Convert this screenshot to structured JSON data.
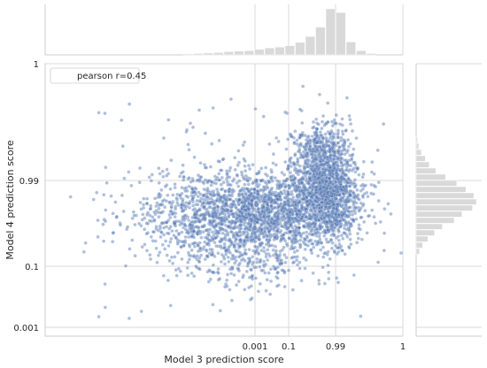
{
  "chart_data": {
    "type": "scatter",
    "title": "",
    "xlabel": "Model 3 prediction score",
    "ylabel": "Model 4 prediction score",
    "x_ticks": [
      "0.001",
      "0.1",
      "0.99",
      "1"
    ],
    "y_ticks": [
      "1",
      "0.99",
      "0.1",
      "0.001"
    ],
    "legend": {
      "label": "pearson r=0.45",
      "placement": "top-left"
    },
    "pearson_r": 0.45,
    "grid": true,
    "point_color": "#4c72b0",
    "histogram_color": "#d9d9d9",
    "marginal_histograms": true,
    "x_scale_note": "logit-like score scale",
    "y_scale_note": "logit-like score scale",
    "x_marginal_histogram": {
      "bins": [
        "0.0002",
        "0.0003",
        "0.0005",
        "0.0008",
        "0.001",
        "0.002",
        "0.004",
        "0.008",
        "0.016",
        "0.03",
        "0.06",
        "0.1",
        "0.2",
        "0.35",
        "0.55",
        "0.75",
        "0.9",
        "0.97",
        "0.99"
      ],
      "counts": [
        2,
        3,
        4,
        5,
        7,
        8,
        9,
        12,
        15,
        17,
        20,
        27,
        40,
        60,
        100,
        92,
        28,
        9,
        3
      ]
    },
    "y_marginal_histogram": {
      "bins": [
        "0.999",
        "0.998",
        "0.997",
        "0.995",
        "0.99",
        "0.985",
        "0.97",
        "0.95",
        "0.92",
        "0.88",
        "0.82",
        "0.75",
        "0.65",
        "0.55",
        "0.45",
        "0.35",
        "0.25",
        "0.15",
        "0.1"
      ],
      "counts": [
        2,
        4,
        8,
        14,
        20,
        30,
        45,
        62,
        76,
        88,
        92,
        86,
        70,
        58,
        40,
        28,
        18,
        10,
        5
      ]
    },
    "point_cloud_note": "~5000 points, dense mass near x≈0.5–0.99, y≈0.7–0.99"
  }
}
